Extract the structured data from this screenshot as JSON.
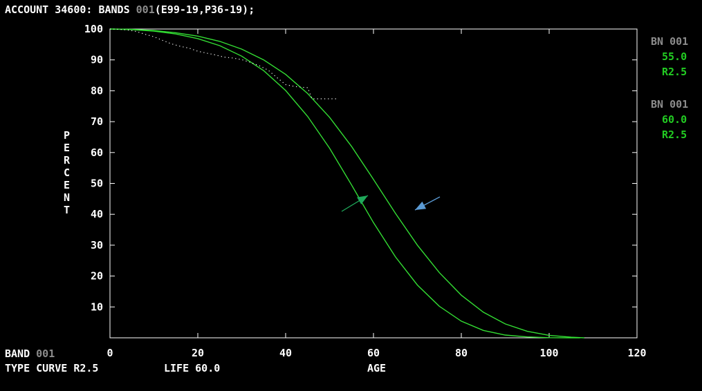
{
  "header": {
    "prefix": "ACCOUNT 34600: BANDS ",
    "band_code": "001",
    "suffix": "(E99-19,P36-19);"
  },
  "legend": [
    {
      "label": "BN 001",
      "life": "55.0",
      "curve": "R2.5"
    },
    {
      "label": "BN 001",
      "life": "60.0",
      "curve": "R2.5"
    }
  ],
  "footer": {
    "band_label": "BAND ",
    "band_code": "001",
    "type_curve": "TYPE CURVE R2.5",
    "life": "LIFE 60.0"
  },
  "colors": {
    "axes": "#ffffff",
    "curve": "#33dd33",
    "dots": "#ffffff",
    "arrow_green": "#1fa85a",
    "arrow_blue": "#5b9bd5"
  },
  "chart_data": {
    "type": "line",
    "xlabel": "AGE",
    "ylabel": "PERCENT",
    "xlim": [
      0,
      120
    ],
    "ylim": [
      0,
      100
    ],
    "x_ticks": [
      "0",
      "20",
      "40",
      "60",
      "80",
      "100",
      "120"
    ],
    "y_ticks": [
      "10",
      "20",
      "30",
      "40",
      "50",
      "60",
      "70",
      "80",
      "90",
      "100"
    ],
    "grid": false,
    "series": [
      {
        "x": [
          0,
          5,
          10,
          15,
          20,
          25,
          30,
          35,
          40,
          45,
          50,
          55,
          60,
          65,
          70,
          75,
          80,
          85,
          90,
          95,
          100,
          105,
          107
        ],
        "values": [
          100,
          99.8,
          99.3,
          98.4,
          96.9,
          94.6,
          91.2,
          86.5,
          80.1,
          71.7,
          61.4,
          49.5,
          37.3,
          26.2,
          17.1,
          10.2,
          5.4,
          2.4,
          0.9,
          0.3,
          0.05,
          0,
          0
        ]
      },
      {
        "x": [
          0,
          5,
          10,
          15,
          20,
          25,
          30,
          35,
          40,
          45,
          50,
          55,
          60,
          65,
          70,
          75,
          80,
          85,
          90,
          95,
          100,
          105,
          108
        ],
        "values": [
          100,
          99.9,
          99.5,
          98.8,
          97.7,
          96.0,
          93.5,
          90.0,
          85.3,
          79.1,
          71.4,
          62.0,
          51.3,
          40.3,
          30.0,
          21.1,
          13.8,
          8.3,
          4.5,
          2.1,
          0.8,
          0.2,
          0
        ]
      },
      {
        "style": "dotted",
        "x": [
          0,
          2,
          4,
          6,
          8,
          10,
          12,
          14,
          16,
          18,
          20,
          22,
          24,
          26,
          28,
          30,
          32,
          34,
          36,
          38,
          40,
          42,
          44,
          45,
          46,
          48,
          50,
          52
        ],
        "values": [
          100,
          99.9,
          99.7,
          99.2,
          98.3,
          97.5,
          96.3,
          95.2,
          94.4,
          93.8,
          92.8,
          92.2,
          91.6,
          90.9,
          90.6,
          90.1,
          89.2,
          88.1,
          86.7,
          84.3,
          82.0,
          81.4,
          81.1,
          81.0,
          77.4,
          77.4,
          77.4,
          77.4
        ]
      }
    ]
  }
}
